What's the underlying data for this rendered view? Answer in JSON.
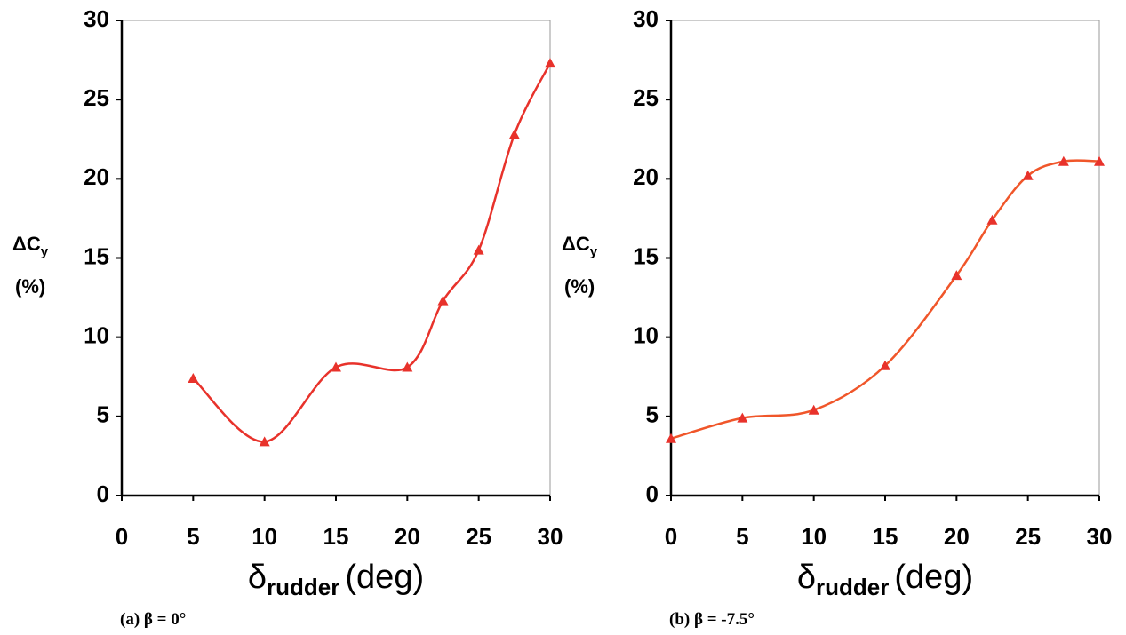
{
  "chart_data": [
    {
      "type": "line",
      "caption": "(a) β = 0°",
      "xlabel": {
        "symbol": "δ",
        "sub": "rudder",
        "unit": "(deg)"
      },
      "ylabel": {
        "symbol": "ΔC",
        "sub": "y",
        "unit": "(%)"
      },
      "x": [
        5,
        10,
        15,
        20,
        22.5,
        25,
        27.5,
        30
      ],
      "series": [
        {
          "color": "#e8322b",
          "values": [
            7.4,
            3.4,
            8.1,
            8.1,
            12.3,
            15.5,
            22.8,
            27.3
          ]
        }
      ],
      "xlim": [
        0,
        30
      ],
      "xticks": [
        0,
        5,
        10,
        15,
        20,
        25,
        30
      ],
      "ylim": [
        0,
        30
      ],
      "yticks": [
        0,
        5,
        10,
        15,
        20,
        25,
        30
      ]
    },
    {
      "type": "line",
      "caption": "(b) β = -7.5°",
      "xlabel": {
        "symbol": "δ",
        "sub": "rudder",
        "unit": "(deg)"
      },
      "ylabel": {
        "symbol": "ΔC",
        "sub": "y",
        "unit": "(%)"
      },
      "x": [
        0,
        5,
        10,
        15,
        20,
        22.5,
        25,
        27.5,
        30
      ],
      "series": [
        {
          "color": "#f0562a",
          "values": [
            3.6,
            4.9,
            5.4,
            8.2,
            13.9,
            17.4,
            20.2,
            21.1,
            21.1
          ]
        }
      ],
      "xlim": [
        0,
        30
      ],
      "xticks": [
        0,
        5,
        10,
        15,
        20,
        25,
        30
      ],
      "ylim": [
        0,
        30
      ],
      "yticks": [
        0,
        5,
        10,
        15,
        20,
        25,
        30
      ]
    }
  ]
}
